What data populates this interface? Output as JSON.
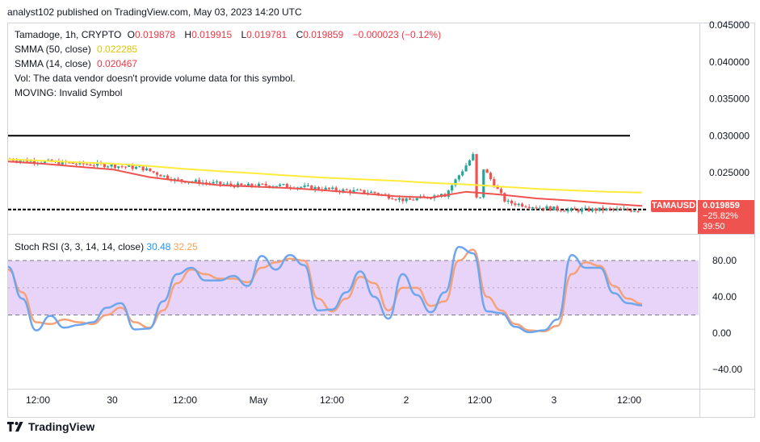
{
  "publisher": "analyst102 published on TradingView.com, May 03, 2023 14:20 UTC",
  "legend": {
    "symbol_line": {
      "name": "Tamadoge, 1h, CRYPTO",
      "o_label": "O",
      "o": "0.019878",
      "h_label": "H",
      "h": "0.019915",
      "l_label": "L",
      "l": "0.019781",
      "c_label": "C",
      "c": "0.019859",
      "change": "−0.000023 (−0.12%)"
    },
    "sma50_label": "SMMA (50, close)",
    "sma50_value": "0.022285",
    "sma14_label": "SMMA (14, close)",
    "sma14_value": "0.020467",
    "vol_text": "Vol: The data vendor doesn't provide volume data for this symbol.",
    "moving_text": "MOVING: Invalid Symbol"
  },
  "price_tag": {
    "ticker": "TAMAUSD",
    "price": "0.019859",
    "change": "−25.82%",
    "countdown": "39:50"
  },
  "stoch": {
    "label": "Stoch RSI (3, 3, 14, 14, close)",
    "k_value": "30.48",
    "d_value": "32.25"
  },
  "footer": {
    "brand": "TradingView",
    "logo_icon": "tradingview-logo-icon"
  },
  "colors": {
    "up": "#26a69a",
    "down": "#ef5350",
    "sma50": "#ffeb3b",
    "sma14": "#ef5350",
    "k": "#6ea6ee",
    "d": "#f5a27a",
    "band": "#e1c6f7"
  },
  "chart_data": [
    {
      "type": "candlestick",
      "title": "Tamadoge, 1h, CRYPTO",
      "y_ticks": [
        "0.045000",
        "0.040000",
        "0.035000",
        "0.030000",
        "0.025000"
      ],
      "ylim": [
        0.0185,
        0.0455
      ],
      "x_ticks": [
        "12:00",
        "30",
        "12:00",
        "May",
        "12:00",
        "2",
        "12:00",
        "3",
        "12:00"
      ],
      "horizontal_lines": [
        0.03,
        0.02
      ],
      "series": [
        {
          "name": "SMMA (50, close)",
          "values": [
            0.0268,
            0.0266,
            0.0264,
            0.0262,
            0.0259,
            0.0255,
            0.0252,
            0.0249,
            0.0246,
            0.0243,
            0.0241,
            0.0239,
            0.0236,
            0.0234,
            0.0231,
            0.0228,
            0.0226,
            0.0224,
            0.0223
          ]
        },
        {
          "name": "SMMA (14, close)",
          "values": [
            0.0265,
            0.0262,
            0.0258,
            0.0254,
            0.0244,
            0.0238,
            0.0233,
            0.0231,
            0.0229,
            0.0226,
            0.0222,
            0.0218,
            0.0216,
            0.0224,
            0.022,
            0.0215,
            0.0212,
            0.0208,
            0.0205
          ]
        }
      ],
      "closes": [
        0.0268,
        0.0265,
        0.0262,
        0.026,
        0.0256,
        0.024,
        0.0236,
        0.0232,
        0.0233,
        0.023,
        0.0226,
        0.0223,
        0.0212,
        0.022,
        0.0278,
        0.021,
        0.0203,
        0.0199,
        0.02,
        0.0199
      ]
    },
    {
      "type": "line",
      "title": "Stoch RSI (3, 3, 14, 14, close)",
      "y_ticks": [
        "80.00",
        "40.00",
        "0.00",
        "−40.00"
      ],
      "ylim": [
        -50,
        105
      ],
      "band": [
        20,
        80
      ],
      "series": [
        {
          "name": "K",
          "values": [
            73,
            38,
            3,
            19,
            6,
            9,
            12,
            28,
            33,
            4,
            5,
            35,
            65,
            72,
            58,
            58,
            63,
            52,
            85,
            70,
            86,
            75,
            25,
            26,
            45,
            68,
            40,
            16,
            65,
            42,
            23,
            45,
            95,
            88,
            24,
            22,
            7,
            1,
            3,
            15,
            86,
            72,
            72,
            44,
            33,
            30.48
          ]
        },
        {
          "name": "D",
          "values": [
            70,
            45,
            12,
            10,
            15,
            12,
            10,
            20,
            28,
            12,
            6,
            25,
            55,
            70,
            65,
            60,
            60,
            56,
            72,
            78,
            82,
            80,
            38,
            24,
            38,
            62,
            55,
            25,
            50,
            50,
            30,
            35,
            80,
            92,
            40,
            25,
            10,
            3,
            2,
            8,
            65,
            78,
            74,
            52,
            38,
            32.25
          ]
        }
      ]
    }
  ]
}
